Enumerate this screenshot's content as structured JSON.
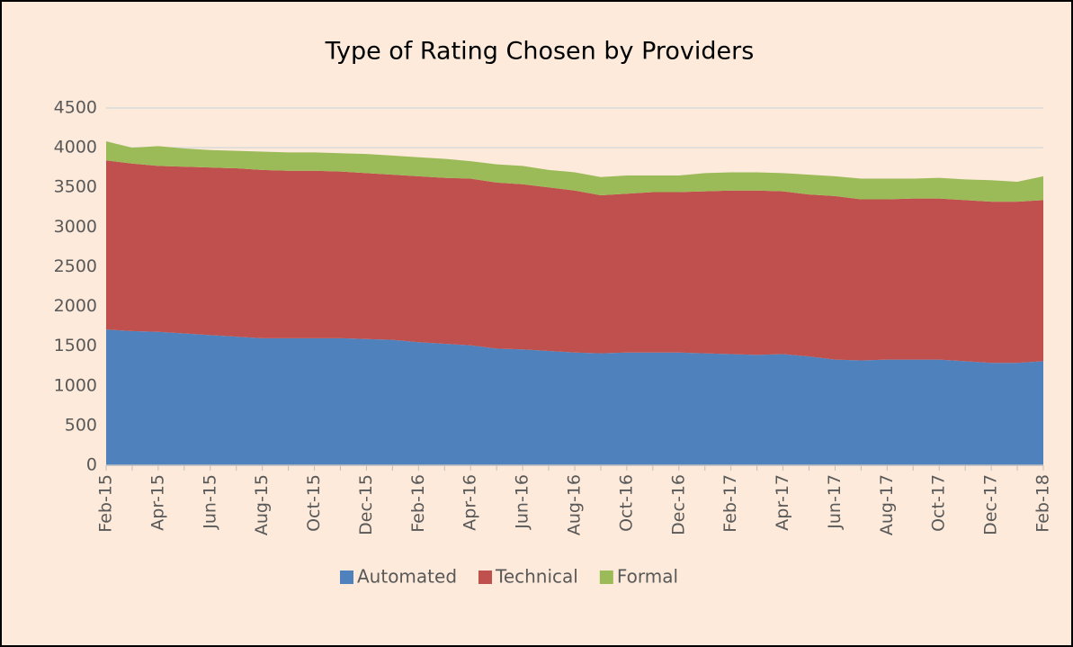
{
  "chart_data": {
    "type": "stacked-area",
    "title": "Type of Rating Chosen by Providers",
    "categories": [
      "Feb-15",
      null,
      "Apr-15",
      null,
      "Jun-15",
      null,
      "Aug-15",
      null,
      "Oct-15",
      null,
      "Dec-15",
      null,
      "Feb-16",
      null,
      "Apr-16",
      null,
      "Jun-16",
      null,
      "Aug-16",
      null,
      "Oct-16",
      null,
      "Dec-16",
      null,
      "Feb-17",
      null,
      "Apr-17",
      null,
      "Jun-17",
      null,
      "Aug-17",
      null,
      "Oct-17",
      null,
      "Dec-17",
      null,
      "Feb-18"
    ],
    "series": [
      {
        "name": "Automated",
        "color": "#4f81bd",
        "values": [
          1710,
          1690,
          1680,
          1660,
          1640,
          1620,
          1600,
          1600,
          1600,
          1600,
          1590,
          1580,
          1550,
          1530,
          1510,
          1470,
          1460,
          1440,
          1420,
          1410,
          1420,
          1420,
          1420,
          1410,
          1400,
          1390,
          1400,
          1370,
          1330,
          1320,
          1330,
          1330,
          1330,
          1310,
          1290,
          1290,
          1310
        ]
      },
      {
        "name": "Technical",
        "color": "#c0504d",
        "values": [
          2130,
          2110,
          2090,
          2100,
          2110,
          2120,
          2120,
          2110,
          2110,
          2100,
          2090,
          2080,
          2090,
          2090,
          2100,
          2090,
          2080,
          2060,
          2040,
          1990,
          2000,
          2020,
          2020,
          2040,
          2060,
          2070,
          2050,
          2040,
          2060,
          2030,
          2020,
          2030,
          2030,
          2030,
          2030,
          2030,
          2030
        ]
      },
      {
        "name": "Formal",
        "color": "#9bbb59",
        "values": [
          240,
          200,
          250,
          230,
          220,
          220,
          230,
          230,
          230,
          230,
          240,
          240,
          240,
          240,
          220,
          230,
          230,
          220,
          230,
          230,
          230,
          210,
          210,
          230,
          230,
          230,
          230,
          250,
          250,
          260,
          260,
          250,
          260,
          260,
          270,
          250,
          300
        ]
      }
    ],
    "ylim": [
      0,
      4500
    ],
    "yticks": [
      0,
      500,
      1000,
      1500,
      2000,
      2500,
      3000,
      3500,
      4000,
      4500
    ],
    "grid": true,
    "legend": "bottom"
  }
}
